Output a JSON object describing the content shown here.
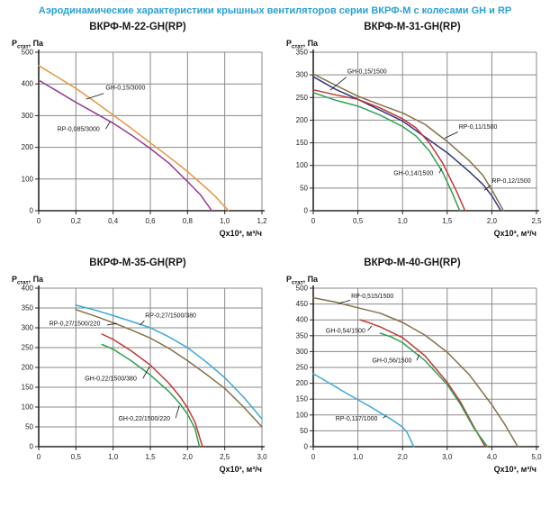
{
  "page_title": "Аэродинамические характеристики крышных вентиляторов серии ВКРФ-М с колесами GH и RP",
  "colors": {
    "title_blue": "#29a0d6",
    "grid": "#8a8a8a",
    "axis": "#262626",
    "text": "#111111"
  },
  "axis_labels": {
    "y_main": "Р",
    "y_sub": "стат",
    "y_rest": ", Па",
    "x": "Qx10³, м³/ч"
  },
  "chart_data": [
    {
      "title": "ВКРФ-М-22-GH(RP)",
      "type": "line",
      "xlabel": "Qx10³, м³/ч",
      "ylabel": "Рстат, Па",
      "xlim": [
        0,
        1.2
      ],
      "ylim": [
        0,
        500
      ],
      "xticks": [
        0,
        0.2,
        0.4,
        0.6,
        0.8,
        1.0,
        1.2
      ],
      "xtick_labels": [
        "0",
        "0,2",
        "0,4",
        "0,6",
        "0,8",
        "1,0",
        "1,2"
      ],
      "yticks": [
        0,
        100,
        200,
        300,
        400,
        500
      ],
      "ytick_labels": [
        "0",
        "100",
        "200",
        "300",
        "400",
        "500"
      ],
      "series": [
        {
          "name": "GH-0,15/3000",
          "color": "#e2973d",
          "points": [
            [
              0,
              458
            ],
            [
              0.1,
              422
            ],
            [
              0.2,
              386
            ],
            [
              0.3,
              345
            ],
            [
              0.4,
              302
            ],
            [
              0.5,
              259
            ],
            [
              0.6,
              214
            ],
            [
              0.7,
              170
            ],
            [
              0.8,
              124
            ],
            [
              0.9,
              72
            ],
            [
              0.95,
              45
            ],
            [
              1.02,
              0
            ]
          ],
          "label_pos": [
            0.36,
            382
          ],
          "label_anchor": "start",
          "leader": [
            [
              0.35,
              370
            ],
            [
              0.255,
              352
            ]
          ]
        },
        {
          "name": "RP-0,085/3000",
          "color": "#93398f",
          "points": [
            [
              0,
              412
            ],
            [
              0.1,
              377
            ],
            [
              0.2,
              342
            ],
            [
              0.3,
              309
            ],
            [
              0.4,
              276
            ],
            [
              0.5,
              238
            ],
            [
              0.6,
              196
            ],
            [
              0.7,
              150
            ],
            [
              0.8,
              92
            ],
            [
              0.87,
              50
            ],
            [
              0.93,
              0
            ]
          ],
          "label_pos": [
            0.1,
            252
          ],
          "label_anchor": "start",
          "leader": [
            [
              0.36,
              258
            ],
            [
              0.385,
              282
            ]
          ]
        }
      ]
    },
    {
      "title": "ВКРФ-М-31-GH(RP)",
      "type": "line",
      "xlabel": "Qx10³, м³/ч",
      "ylabel": "Рстат, Па",
      "xlim": [
        0,
        2.5
      ],
      "ylim": [
        0,
        350
      ],
      "xticks": [
        0,
        0.5,
        1.0,
        1.5,
        2.0,
        2.5
      ],
      "xtick_labels": [
        "0",
        "0,5",
        "1,0",
        "1,5",
        "2,0",
        "2,5"
      ],
      "yticks": [
        0,
        50,
        100,
        150,
        200,
        250,
        300,
        350
      ],
      "ytick_labels": [
        "0",
        "50",
        "100",
        "150",
        "200",
        "250",
        "300",
        "350"
      ],
      "series": [
        {
          "name": "RP-0,11/1500",
          "color": "#857049",
          "points": [
            [
              0,
              302
            ],
            [
              0.25,
              277
            ],
            [
              0.5,
              253
            ],
            [
              0.75,
              234
            ],
            [
              1.0,
              216
            ],
            [
              1.25,
              191
            ],
            [
              1.5,
              153
            ],
            [
              1.75,
              110
            ],
            [
              1.9,
              78
            ],
            [
              2.0,
              46
            ],
            [
              2.13,
              0
            ]
          ],
          "label_pos": [
            1.63,
            181
          ],
          "label_anchor": "start",
          "leader": [
            [
              1.62,
              174
            ],
            [
              1.47,
              160
            ]
          ]
        },
        {
          "name": "RP-0,12/1500",
          "color": "#31397f",
          "points": [
            [
              0,
              296
            ],
            [
              0.25,
              268
            ],
            [
              0.5,
              246
            ],
            [
              0.75,
              222
            ],
            [
              1.0,
              198
            ],
            [
              1.25,
              163
            ],
            [
              1.5,
              128
            ],
            [
              1.75,
              86
            ],
            [
              1.9,
              58
            ],
            [
              2.0,
              33
            ],
            [
              2.1,
              0
            ]
          ],
          "label_pos": [
            2.0,
            62
          ],
          "label_anchor": "start",
          "leader": [
            [
              1.985,
              56
            ],
            [
              1.915,
              45
            ]
          ]
        },
        {
          "name": "GH-0,15/1500",
          "color": "#c13737",
          "points": [
            [
              0,
              267
            ],
            [
              0.25,
              256
            ],
            [
              0.5,
              246
            ],
            [
              0.75,
              227
            ],
            [
              1.0,
              203
            ],
            [
              1.15,
              183
            ],
            [
              1.3,
              150
            ],
            [
              1.45,
              105
            ],
            [
              1.6,
              45
            ],
            [
              1.7,
              0
            ]
          ],
          "label_pos": [
            0.38,
            303
          ],
          "label_anchor": "start",
          "leader": [
            [
              0.37,
              295
            ],
            [
              0.19,
              266
            ]
          ]
        },
        {
          "name": "GH-0,14/1500",
          "color": "#2da04f",
          "points": [
            [
              0,
              261
            ],
            [
              0.25,
              244
            ],
            [
              0.5,
              231
            ],
            [
              0.75,
              211
            ],
            [
              1.0,
              186
            ],
            [
              1.15,
              165
            ],
            [
              1.3,
              132
            ],
            [
              1.45,
              85
            ],
            [
              1.55,
              42
            ],
            [
              1.64,
              0
            ]
          ],
          "label_pos": [
            0.9,
            79
          ],
          "label_anchor": "start",
          "leader": [
            [
              1.41,
              83
            ],
            [
              1.44,
              94
            ]
          ]
        }
      ]
    },
    {
      "title": "ВКРФ-М-35-GH(RP)",
      "type": "line",
      "xlabel": "Qx10³, м³/ч",
      "ylabel": "Рстат, Па",
      "xlim": [
        0,
        3.0
      ],
      "ylim": [
        0,
        400
      ],
      "xticks": [
        0,
        0.5,
        1.0,
        1.5,
        2.0,
        2.5,
        3.0
      ],
      "xtick_labels": [
        "0",
        "0,5",
        "1,0",
        "1,5",
        "2,0",
        "2,5",
        "3,0"
      ],
      "yticks": [
        0,
        50,
        100,
        150,
        200,
        250,
        300,
        350,
        400
      ],
      "ytick_labels": [
        "0",
        "50",
        "100",
        "150",
        "200",
        "250",
        "300",
        "350",
        "400"
      ],
      "series": [
        {
          "name": "RP-0,27/1500/380",
          "color": "#3ba7d9",
          "points": [
            [
              0.5,
              357
            ],
            [
              0.75,
              345
            ],
            [
              1.0,
              331
            ],
            [
              1.25,
              316
            ],
            [
              1.5,
              300
            ],
            [
              1.75,
              277
            ],
            [
              2.0,
              250
            ],
            [
              2.25,
              214
            ],
            [
              2.5,
              174
            ],
            [
              2.75,
              126
            ],
            [
              3.0,
              70
            ]
          ],
          "label_pos": [
            1.43,
            326
          ],
          "label_anchor": "start",
          "leader": [
            [
              1.42,
              318
            ],
            [
              1.36,
              307
            ]
          ]
        },
        {
          "name": "RP-0,27/1500/220",
          "color": "#857049",
          "points": [
            [
              0.5,
              346
            ],
            [
              0.75,
              330
            ],
            [
              1.0,
              313
            ],
            [
              1.25,
              294
            ],
            [
              1.5,
              274
            ],
            [
              1.75,
              248
            ],
            [
              2.0,
              217
            ],
            [
              2.25,
              183
            ],
            [
              2.5,
              147
            ],
            [
              2.75,
              101
            ],
            [
              3.0,
              50
            ]
          ],
          "label_pos": [
            0.14,
            306
          ],
          "label_anchor": "start",
          "leader": [
            [
              0.92,
              307
            ],
            [
              1.05,
              311
            ]
          ]
        },
        {
          "name": "GH-0,22/1500/380",
          "color": "#c13737",
          "points": [
            [
              0.85,
              284
            ],
            [
              1.0,
              271
            ],
            [
              1.25,
              241
            ],
            [
              1.5,
              206
            ],
            [
              1.75,
              160
            ],
            [
              1.9,
              126
            ],
            [
              2.0,
              98
            ],
            [
              2.1,
              62
            ],
            [
              2.2,
              0
            ]
          ],
          "label_pos": [
            0.62,
            167
          ],
          "label_anchor": "start",
          "leader": [
            [
              1.4,
              172
            ],
            [
              1.49,
              202
            ]
          ]
        },
        {
          "name": "GH-0,22/1500/220",
          "color": "#2da04f",
          "points": [
            [
              0.85,
              258
            ],
            [
              1.0,
              246
            ],
            [
              1.25,
              216
            ],
            [
              1.5,
              181
            ],
            [
              1.75,
              139
            ],
            [
              1.9,
              108
            ],
            [
              2.0,
              82
            ],
            [
              2.1,
              46
            ],
            [
              2.16,
              0
            ]
          ],
          "label_pos": [
            1.07,
            66
          ],
          "label_anchor": "start",
          "leader": [
            [
              1.84,
              72
            ],
            [
              1.89,
              104
            ]
          ]
        }
      ]
    },
    {
      "title": "ВКРФ-М-40-GH(RP)",
      "type": "line",
      "xlabel": "Qx10³, м³/ч",
      "ylabel": "Рстат, Па",
      "xlim": [
        0,
        5.0
      ],
      "ylim": [
        0,
        500
      ],
      "xticks": [
        0,
        1.0,
        2.0,
        3.0,
        4.0,
        5.0
      ],
      "xtick_labels": [
        "0",
        "1,0",
        "2,0",
        "3,0",
        "4,0",
        "5,0"
      ],
      "yticks": [
        0,
        50,
        100,
        150,
        200,
        250,
        300,
        350,
        400,
        450,
        500
      ],
      "ytick_labels": [
        "0",
        "50",
        "100",
        "150",
        "200",
        "250",
        "300",
        "350",
        "400",
        "450",
        "500"
      ],
      "series": [
        {
          "name": "RP-0,515/1500",
          "color": "#857049",
          "points": [
            [
              0,
              470
            ],
            [
              0.5,
              456
            ],
            [
              1.0,
              438
            ],
            [
              1.5,
              421
            ],
            [
              2.0,
              392
            ],
            [
              2.5,
              352
            ],
            [
              3.0,
              298
            ],
            [
              3.5,
              226
            ],
            [
              4.0,
              132
            ],
            [
              4.3,
              68
            ],
            [
              4.58,
              0
            ]
          ],
          "label_pos": [
            0.85,
            469
          ],
          "label_anchor": "start",
          "leader": [
            [
              0.83,
              462
            ],
            [
              0.57,
              452
            ]
          ]
        },
        {
          "name": "GH-0,54/1500",
          "color": "#c13737",
          "points": [
            [
              1.05,
              400
            ],
            [
              1.25,
              391
            ],
            [
              1.5,
              378
            ],
            [
              2.0,
              344
            ],
            [
              2.5,
              287
            ],
            [
              3.0,
              203
            ],
            [
              3.3,
              140
            ],
            [
              3.6,
              62
            ],
            [
              3.85,
              0
            ]
          ],
          "label_pos": [
            0.28,
            359
          ],
          "label_anchor": "start",
          "leader": [
            [
              1.22,
              366
            ],
            [
              1.31,
              381
            ]
          ]
        },
        {
          "name": "GH-0,56/1500",
          "color": "#2da04f",
          "points": [
            [
              1.5,
              358
            ],
            [
              1.75,
              346
            ],
            [
              2.0,
              328
            ],
            [
              2.5,
              272
            ],
            [
              3.0,
              196
            ],
            [
              3.3,
              133
            ],
            [
              3.6,
              58
            ],
            [
              3.9,
              0
            ]
          ],
          "label_pos": [
            1.32,
            266
          ],
          "label_anchor": "start",
          "leader": [
            [
              2.32,
              272
            ],
            [
              2.37,
              291
            ]
          ]
        },
        {
          "name": "RP-0,117/1000",
          "color": "#3ba7d9",
          "points": [
            [
              0,
              230
            ],
            [
              0.25,
              210
            ],
            [
              0.5,
              189
            ],
            [
              0.75,
              168
            ],
            [
              1.0,
              148
            ],
            [
              1.25,
              128
            ],
            [
              1.5,
              107
            ],
            [
              1.75,
              86
            ],
            [
              2.0,
              62
            ],
            [
              2.1,
              45
            ],
            [
              2.25,
              0
            ]
          ],
          "label_pos": [
            0.5,
            82
          ],
          "label_anchor": "start",
          "leader": [
            [
              1.56,
              90
            ],
            [
              1.63,
              97
            ]
          ]
        }
      ]
    }
  ]
}
